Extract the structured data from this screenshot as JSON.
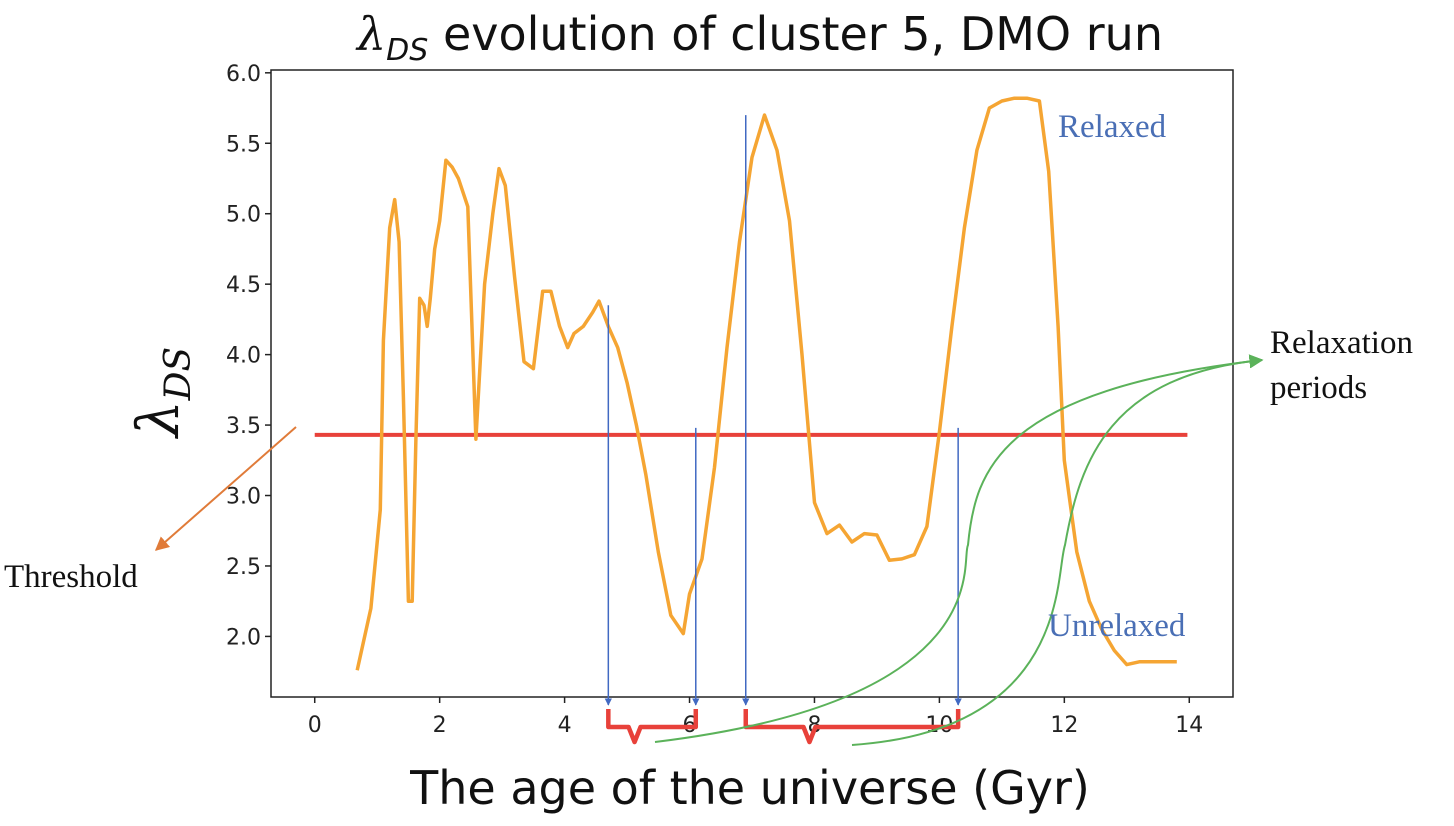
{
  "chart_data": {
    "type": "line",
    "title_main": "λ",
    "title_sub": "DS",
    "title_rest": " evolution of cluster 5, DMO run",
    "xlabel": "The age of the universe (Gyr)",
    "ylabel_main": "λ",
    "ylabel_sub": "DS",
    "xlim": [
      -0.7,
      14.7
    ],
    "ylim": [
      1.57,
      6.02
    ],
    "xticks": [
      0,
      2,
      4,
      6,
      8,
      10,
      12,
      14
    ],
    "yticks": [
      2.0,
      2.5,
      3.0,
      3.5,
      4.0,
      4.5,
      5.0,
      5.5,
      6.0
    ],
    "ytick_labels": [
      "2.0",
      "2.5",
      "3.0",
      "3.5",
      "4.0",
      "4.5",
      "5.0",
      "5.5",
      "6.0"
    ],
    "grid": false,
    "line_color": "#f5a533",
    "threshold_color": "#e8413a",
    "marker_color": "#4169c2",
    "annotation_green": "#5bb25a",
    "annotation_orange": "#e07b39",
    "series": [
      {
        "x": [
          0.68,
          0.9,
          1.05,
          1.1,
          1.2,
          1.28,
          1.35,
          1.42,
          1.5,
          1.56,
          1.62,
          1.68,
          1.75,
          1.8,
          1.85,
          1.92,
          2.0,
          2.1,
          2.2,
          2.3,
          2.45,
          2.58,
          2.72,
          2.85,
          2.95,
          3.05,
          3.2,
          3.35,
          3.5,
          3.65,
          3.78,
          3.92,
          4.05,
          4.15,
          4.3,
          4.45,
          4.55,
          4.7,
          4.85,
          5.0,
          5.15,
          5.3,
          5.5,
          5.7,
          5.9,
          6.0,
          6.2,
          6.4,
          6.6,
          6.8,
          7.0,
          7.2,
          7.4,
          7.6,
          7.8,
          8.0,
          8.2,
          8.4,
          8.6,
          8.8,
          9.0,
          9.2,
          9.4,
          9.6,
          9.8,
          10.0,
          10.2,
          10.4,
          10.6,
          10.8,
          11.0,
          11.2,
          11.4,
          11.6,
          11.75,
          11.9,
          12.0,
          12.2,
          12.4,
          12.6,
          12.8,
          13.0,
          13.2,
          13.4,
          13.6,
          13.8
        ],
        "y": [
          1.76,
          2.2,
          2.9,
          4.1,
          4.9,
          5.1,
          4.8,
          3.7,
          2.25,
          2.25,
          3.4,
          4.4,
          4.35,
          4.2,
          4.4,
          4.75,
          4.95,
          5.38,
          5.33,
          5.25,
          5.05,
          3.4,
          4.5,
          5.0,
          5.32,
          5.2,
          4.55,
          3.95,
          3.9,
          4.45,
          4.45,
          4.2,
          4.05,
          4.15,
          4.2,
          4.3,
          4.38,
          4.2,
          4.05,
          3.8,
          3.5,
          3.15,
          2.6,
          2.15,
          2.02,
          2.3,
          2.55,
          3.2,
          4.05,
          4.8,
          5.4,
          5.7,
          5.45,
          4.95,
          4.0,
          2.95,
          2.73,
          2.79,
          2.67,
          2.73,
          2.72,
          2.54,
          2.55,
          2.58,
          2.78,
          3.45,
          4.2,
          4.9,
          5.45,
          5.75,
          5.8,
          5.82,
          5.82,
          5.8,
          5.3,
          4.2,
          3.25,
          2.6,
          2.25,
          2.05,
          1.9,
          1.8,
          1.82,
          1.82,
          1.82,
          1.82
        ]
      }
    ],
    "threshold": {
      "y": 3.43,
      "x_start": 0.0,
      "x_end": 13.97
    },
    "transition_markers": [
      {
        "x": 4.7,
        "y_top": 4.35
      },
      {
        "x": 6.1,
        "y_top": 3.48
      },
      {
        "x": 6.9,
        "y_top": 5.7
      },
      {
        "x": 10.3,
        "y_top": 3.48
      }
    ],
    "brackets": [
      {
        "x_start": 4.7,
        "x_end": 6.1
      },
      {
        "x_start": 6.9,
        "x_end": 10.3
      }
    ],
    "annotations": {
      "relaxed": "Relaxed",
      "unrelaxed": "Unrelaxed",
      "threshold": "Threshold",
      "relaxation_line1": "Relaxation",
      "relaxation_line2": "periods"
    }
  }
}
